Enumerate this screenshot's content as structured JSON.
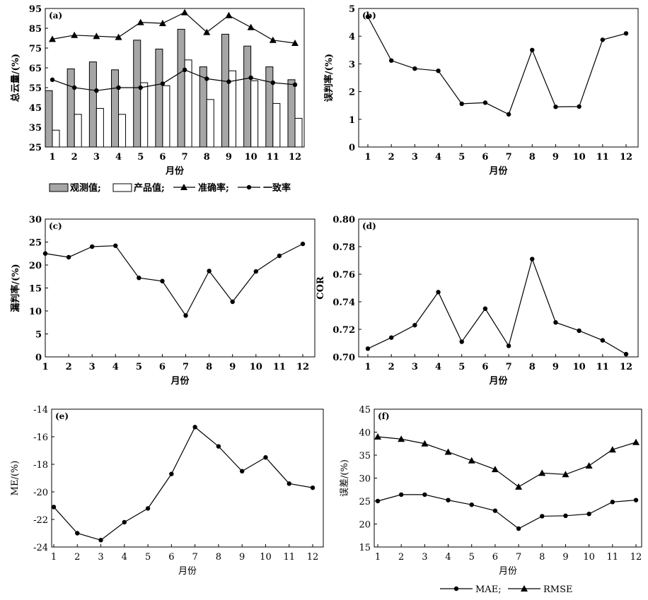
{
  "chart_data": [
    {
      "panel": "(a)",
      "type": "bar",
      "xlabel": "月份",
      "ylabel": "总云量/(%)",
      "categories": [
        "1",
        "2",
        "3",
        "4",
        "5",
        "6",
        "7",
        "8",
        "9",
        "10",
        "11",
        "12"
      ],
      "ylim": [
        25,
        95
      ],
      "yticks": [
        25,
        35,
        45,
        55,
        65,
        75,
        85,
        95
      ],
      "series": [
        {
          "name": "观测值",
          "kind": "bar",
          "color": "#a6a6a6",
          "values": [
            53.5,
            64.5,
            68,
            64,
            79,
            74.5,
            84.5,
            65.5,
            82,
            76,
            65.5,
            59
          ]
        },
        {
          "name": "产品值",
          "kind": "bar",
          "color": "#ffffff",
          "values": [
            33.5,
            41.5,
            44.5,
            41.5,
            57.5,
            56,
            69,
            49,
            63.5,
            58.5,
            47,
            39.5
          ]
        },
        {
          "name": "准确率",
          "kind": "line",
          "marker": "triangle",
          "values": [
            79.5,
            81.5,
            81,
            80.5,
            88,
            87.5,
            93,
            83,
            91.5,
            85.5,
            79,
            77.5
          ]
        },
        {
          "name": "一致率",
          "kind": "line",
          "marker": "circle",
          "values": [
            59,
            55,
            53.5,
            55,
            55,
            57,
            64,
            59.5,
            58,
            60,
            57.5,
            56.5
          ]
        }
      ],
      "legend_items": [
        "观测值;",
        "产品值;",
        "准确率;",
        "一致率"
      ]
    },
    {
      "panel": "(b)",
      "type": "line",
      "xlabel": "月份",
      "ylabel": "误判率/(%)",
      "categories": [
        "1",
        "2",
        "3",
        "4",
        "5",
        "6",
        "7",
        "8",
        "9",
        "10",
        "11",
        "12"
      ],
      "ylim": [
        0,
        5
      ],
      "yticks": [
        0,
        1,
        2,
        3,
        4,
        5
      ],
      "series": [
        {
          "marker": "circle",
          "values": [
            4.7,
            3.12,
            2.83,
            2.75,
            1.56,
            1.6,
            1.18,
            3.5,
            1.45,
            1.46,
            3.87,
            4.1
          ]
        }
      ]
    },
    {
      "panel": "(c)",
      "type": "line",
      "xlabel": "月份",
      "ylabel": "漏判率/(%)",
      "categories": [
        "1",
        "2",
        "3",
        "4",
        "5",
        "6",
        "7",
        "8",
        "9",
        "10",
        "11",
        "12"
      ],
      "ylim": [
        0,
        30
      ],
      "yticks": [
        0,
        5,
        10,
        15,
        20,
        25,
        30
      ],
      "series": [
        {
          "marker": "circle",
          "values": [
            22.5,
            21.7,
            24,
            24.2,
            17.2,
            16.5,
            9,
            18.7,
            12,
            18.6,
            22,
            24.6
          ]
        }
      ]
    },
    {
      "panel": "(d)",
      "type": "line",
      "xlabel": "月份",
      "ylabel": "COR",
      "categories": [
        "1",
        "2",
        "3",
        "4",
        "5",
        "6",
        "7",
        "8",
        "9",
        "10",
        "11",
        "12"
      ],
      "ylim": [
        0.7,
        0.8
      ],
      "yticks": [
        "0.70",
        "0.72",
        "0.74",
        "0.76",
        "0.78",
        "0.80"
      ],
      "series": [
        {
          "marker": "circle",
          "values": [
            0.706,
            0.714,
            0.723,
            0.747,
            0.711,
            0.735,
            0.708,
            0.771,
            0.725,
            0.719,
            0.712,
            0.702
          ]
        }
      ]
    },
    {
      "panel": "(e)",
      "type": "line",
      "xlabel": "月份",
      "ylabel": "ME/(%)",
      "categories": [
        "1",
        "2",
        "3",
        "4",
        "5",
        "6",
        "7",
        "8",
        "9",
        "10",
        "11",
        "12"
      ],
      "ylim": [
        -24,
        -14
      ],
      "yticks": [
        -24,
        -22,
        -20,
        -18,
        -16,
        -14
      ],
      "series": [
        {
          "marker": "circle",
          "values": [
            -21.1,
            -23,
            -23.5,
            -22.2,
            -21.2,
            -18.7,
            -15.3,
            -16.7,
            -18.5,
            -17.5,
            -19.4,
            -19.7
          ]
        }
      ]
    },
    {
      "panel": "(f)",
      "type": "line",
      "xlabel": "月份",
      "ylabel": "误差/(%)",
      "categories": [
        "1",
        "2",
        "3",
        "4",
        "5",
        "6",
        "7",
        "8",
        "9",
        "10",
        "11",
        "12"
      ],
      "ylim": [
        15,
        45
      ],
      "yticks": [
        15,
        20,
        25,
        30,
        35,
        40,
        45
      ],
      "series": [
        {
          "name": "MAE",
          "marker": "circle",
          "values": [
            25,
            26.4,
            26.4,
            25.2,
            24.2,
            22.9,
            19,
            21.7,
            21.8,
            22.2,
            24.8,
            25.2
          ]
        },
        {
          "name": "RMSE",
          "marker": "triangle",
          "values": [
            39,
            38.5,
            37.5,
            35.7,
            33.8,
            31.9,
            28.1,
            31.1,
            30.8,
            32.7,
            36.2,
            37.8
          ]
        }
      ],
      "legend_items": [
        "MAE;",
        "RMSE"
      ]
    }
  ]
}
